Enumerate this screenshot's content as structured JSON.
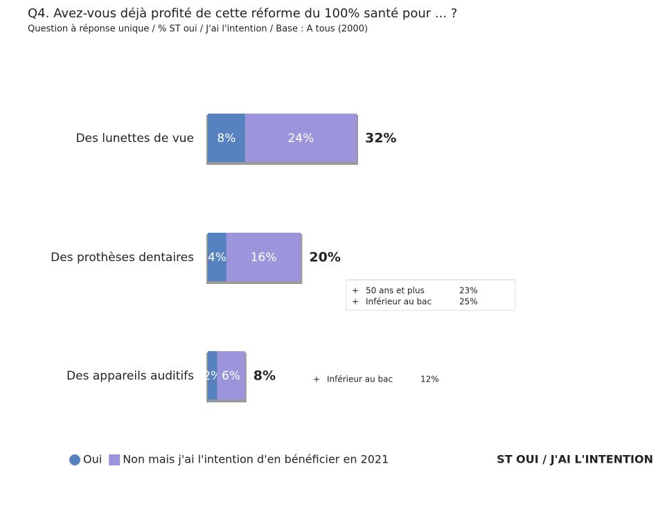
{
  "chart_data": {
    "type": "stacked-bar-horizontal",
    "title": "Q4. Avez-vous déjà profité de cette réforme du 100% santé pour ... ?",
    "subtitle": "Question à réponse unique / % ST oui / J'ai l'intention / Base : A tous (2000)",
    "categories": [
      "Des lunettes de vue",
      "Des prothèses dentaires",
      "Des appareils auditifs"
    ],
    "series": [
      {
        "name": "Oui",
        "color": "#5683bf",
        "values": [
          8,
          4,
          2
        ],
        "value_labels": [
          "8%",
          "4%",
          "2%"
        ]
      },
      {
        "name": "Non mais j'ai l'intention d'en bénéficier en 2021",
        "color": "#9d95dc",
        "values": [
          24,
          16,
          6
        ],
        "value_labels": [
          "24%",
          "16%",
          "6%"
        ]
      }
    ],
    "totals": {
      "name": "ST OUI / J'AI L'INTENTION",
      "values": [
        32,
        20,
        8
      ],
      "value_labels": [
        "32%",
        "20%",
        "8%"
      ]
    },
    "annotations": [
      {
        "category": 1,
        "lines": [
          [
            "+",
            "50 ans et plus",
            "23%"
          ],
          [
            "+",
            "Inférieur au bac",
            "25%"
          ]
        ]
      },
      {
        "category": 2,
        "lines": [
          [
            "+",
            "Inférieur au bac",
            "12%"
          ]
        ]
      }
    ]
  }
}
